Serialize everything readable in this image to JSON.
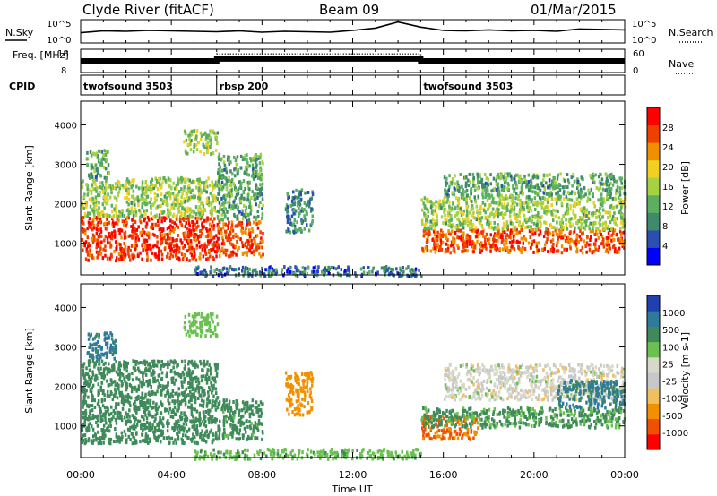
{
  "header": {
    "station": "Clyde River (fitACF)",
    "beam": "Beam 09",
    "date": "01/Mar/2015"
  },
  "colors": {
    "power": [
      "#0000ff",
      "#2a4fb0",
      "#3f8a6a",
      "#5bb060",
      "#a6d140",
      "#f0d020",
      "#f09000",
      "#f04000",
      "#ff0000"
    ],
    "velocity": [
      "#ff0000",
      "#f05000",
      "#f39000",
      "#f0c060",
      "#c8c8c8",
      "#d8d8c8",
      "#6ac050",
      "#3f8a5a",
      "#2e7a9a",
      "#2040b0"
    ]
  },
  "chart_data": [
    {
      "type": "line",
      "panel": "N.Sky / N.Search",
      "ylabel_left": "N.Sky",
      "ylabel_right": "N.Search",
      "yticks_left": [
        "10^5",
        "10^0"
      ],
      "yticks_right": [
        "10^5",
        "10^0"
      ],
      "x_range_hours": [
        0,
        24
      ],
      "series": [
        {
          "values": [
            [
              0,
              2.2
            ],
            [
              1,
              2.6
            ],
            [
              2,
              2.5
            ],
            [
              3,
              2.7
            ],
            [
              4,
              2.6
            ],
            [
              5,
              2.5
            ],
            [
              6,
              2.4
            ],
            [
              7,
              2.6
            ],
            [
              8,
              2.3
            ],
            [
              9,
              2.5
            ],
            [
              10,
              2.4
            ],
            [
              11,
              2.3
            ],
            [
              12,
              2.7
            ],
            [
              13,
              3.2
            ],
            [
              14,
              4.5
            ],
            [
              15,
              3.4
            ],
            [
              16,
              2.7
            ],
            [
              17,
              2.6
            ],
            [
              18,
              2.8
            ],
            [
              19,
              2.6
            ],
            [
              20,
              2.7
            ],
            [
              21,
              2.5
            ],
            [
              22,
              3.0
            ],
            [
              23,
              2.9
            ],
            [
              24,
              2.8
            ]
          ]
        }
      ]
    },
    {
      "type": "line",
      "panel": "Freq. / Nave",
      "ylabel_left": "Freq. [MHz]",
      "ylabel_right": "Nave",
      "yticks_left": [
        "18",
        "8"
      ],
      "yticks_right": [
        "60",
        "0"
      ],
      "x_range_hours": [
        0,
        24
      ],
      "series": [
        {
          "values": [
            [
              0,
              13
            ],
            [
              6,
              13
            ],
            [
              6,
              13.8
            ],
            [
              15,
              13.8
            ],
            [
              15,
              13
            ],
            [
              24,
              13
            ]
          ]
        },
        {
          "values": [
            [
              0,
              13.2
            ],
            [
              6,
              13.2
            ],
            [
              6,
              16
            ],
            [
              15,
              16
            ],
            [
              15,
              13.2
            ],
            [
              24,
              13.2
            ]
          ]
        }
      ]
    },
    {
      "type": "table",
      "panel": "CPID",
      "label": "CPID",
      "programs": [
        {
          "name": "twofsound 3503",
          "start": 0,
          "end": 6
        },
        {
          "name": "rbsp 200",
          "start": 6,
          "end": 15
        },
        {
          "name": "twofsound 3503",
          "start": 15,
          "end": 24
        }
      ]
    },
    {
      "type": "heatmap",
      "panel": "Power",
      "ylabel": "Slant Range [km]",
      "ylim": [
        200,
        4600
      ],
      "yticks": [
        1000,
        2000,
        3000,
        4000
      ],
      "x_range_hours": [
        0,
        24
      ],
      "colorbar_label": "Power [dB]",
      "colorbar_ticks": [
        "4",
        "8",
        "12",
        "16",
        "20",
        "24",
        "28"
      ],
      "blobs": [
        {
          "t0": 0.0,
          "t1": 6.0,
          "r0": 600,
          "r1": 1700,
          "v": 28
        },
        {
          "t0": 0.0,
          "t1": 6.0,
          "r0": 1700,
          "r1": 2700,
          "v": 14
        },
        {
          "t0": 0.2,
          "t1": 1.2,
          "r0": 2700,
          "r1": 3400,
          "v": 10
        },
        {
          "t0": 4.5,
          "t1": 6.0,
          "r0": 3300,
          "r1": 3900,
          "v": 14
        },
        {
          "t0": 6.0,
          "t1": 8.0,
          "r0": 700,
          "r1": 1600,
          "v": 26
        },
        {
          "t0": 6.0,
          "t1": 8.0,
          "r0": 1600,
          "r1": 3300,
          "v": 10
        },
        {
          "t0": 9.0,
          "t1": 10.2,
          "r0": 1300,
          "r1": 2400,
          "v": 8
        },
        {
          "t0": 15.0,
          "t1": 24.0,
          "r0": 800,
          "r1": 1400,
          "v": 26
        },
        {
          "t0": 15.0,
          "t1": 24.0,
          "r0": 1400,
          "r1": 2200,
          "v": 14
        },
        {
          "t0": 16.0,
          "t1": 24.0,
          "r0": 2200,
          "r1": 2800,
          "v": 10
        },
        {
          "t0": 5.0,
          "t1": 15.0,
          "r0": 200,
          "r1": 450,
          "v": 6
        }
      ]
    },
    {
      "type": "heatmap",
      "panel": "Velocity",
      "ylabel": "Slant Range [km]",
      "ylim": [
        200,
        4600
      ],
      "yticks": [
        1000,
        2000,
        3000,
        4000
      ],
      "x_range_hours": [
        0,
        24
      ],
      "xlabel": "Time UT",
      "xticks": [
        "00:00",
        "04:00",
        "08:00",
        "12:00",
        "16:00",
        "20:00",
        "00:00"
      ],
      "colorbar_label": "Velocity [m s-1]",
      "colorbar_ticks": [
        "-1000",
        "-500",
        "-100",
        "-25",
        "25",
        "100",
        "500",
        "1000"
      ],
      "blobs": [
        {
          "t0": 0.0,
          "t1": 6.0,
          "r0": 600,
          "r1": 1700,
          "v": 200
        },
        {
          "t0": 0.0,
          "t1": 6.0,
          "r0": 1700,
          "r1": 2700,
          "v": 300
        },
        {
          "t0": 0.2,
          "t1": 1.5,
          "r0": 2700,
          "r1": 3400,
          "v": 700
        },
        {
          "t0": 4.5,
          "t1": 6.0,
          "r0": 3300,
          "r1": 3900,
          "v": 60
        },
        {
          "t0": 6.0,
          "t1": 8.0,
          "r0": 700,
          "r1": 1700,
          "v": 150
        },
        {
          "t0": 9.0,
          "t1": 10.2,
          "r0": 1300,
          "r1": 2400,
          "v": -300
        },
        {
          "t0": 15.0,
          "t1": 17.5,
          "r0": 700,
          "r1": 1300,
          "v": -600
        },
        {
          "t0": 15.0,
          "t1": 24.0,
          "r0": 1000,
          "r1": 1500,
          "v": 120
        },
        {
          "t0": 16.0,
          "t1": 24.0,
          "r0": 1700,
          "r1": 2600,
          "v": 0
        },
        {
          "t0": 21.0,
          "t1": 24.0,
          "r0": 1500,
          "r1": 2200,
          "v": 600
        },
        {
          "t0": 5.0,
          "t1": 15.0,
          "r0": 200,
          "r1": 450,
          "v": 80
        }
      ]
    }
  ]
}
